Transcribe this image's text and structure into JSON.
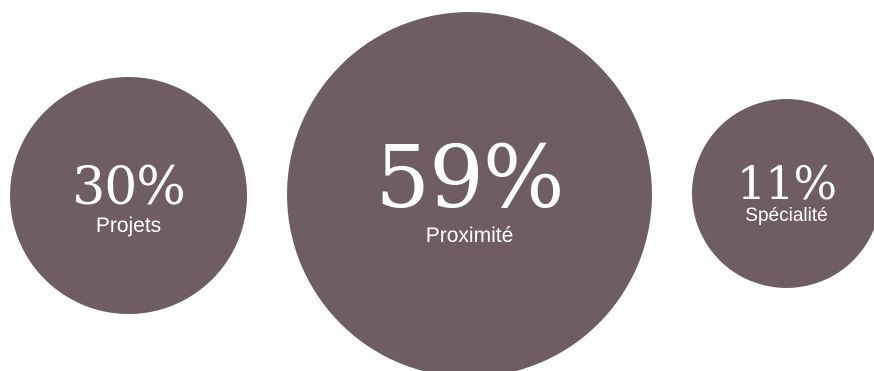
{
  "chart_data": {
    "type": "bubble",
    "title": "",
    "color": "#6e5d62",
    "items": [
      {
        "label": "Projets",
        "display": "30%",
        "value": 30
      },
      {
        "label": "Proximité",
        "display": "59%",
        "value": 59
      },
      {
        "label": "Spécialité",
        "display": "11%",
        "value": 11
      }
    ]
  }
}
